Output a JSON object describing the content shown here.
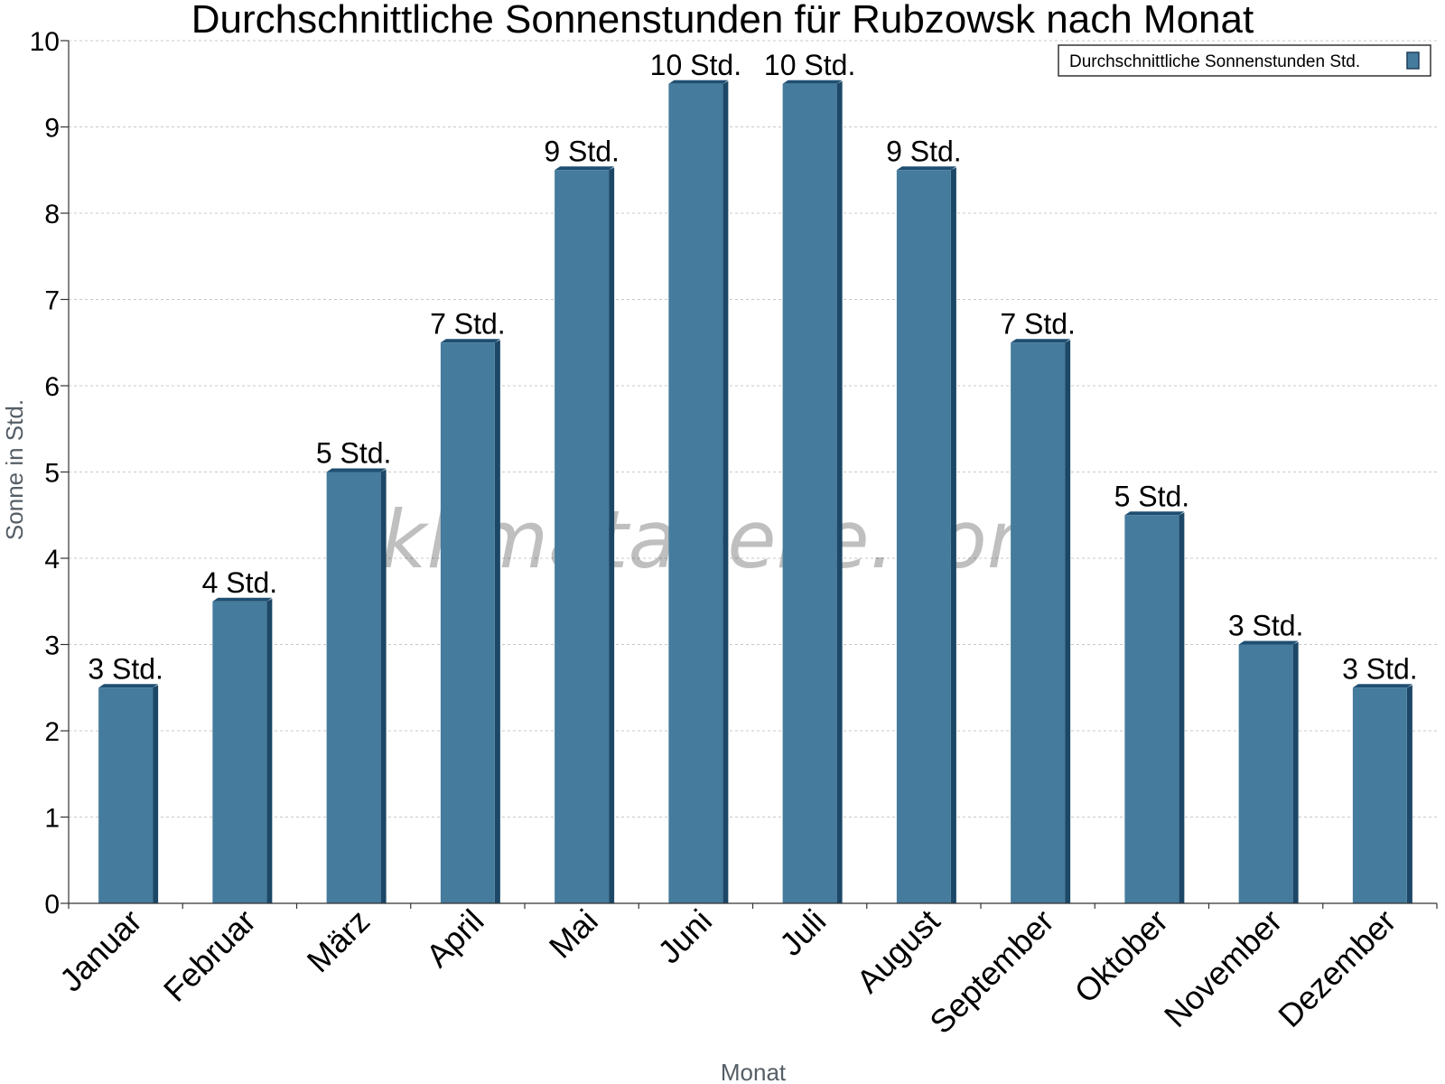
{
  "chart_data": {
    "type": "bar",
    "title": "Durchschnittliche Sonnenstunden für Rubzowsk nach Monat",
    "xlabel": "Monat",
    "ylabel": "Sonne in Std.",
    "ylim": [
      0,
      10
    ],
    "yticks": [
      "0",
      "1",
      "2",
      "3",
      "4",
      "5",
      "6",
      "7",
      "8",
      "9",
      "10"
    ],
    "grid": true,
    "legend_position": "top-right",
    "categories": [
      "Januar",
      "Februar",
      "März",
      "April",
      "Mai",
      "Juni",
      "Juli",
      "August",
      "September",
      "Oktober",
      "November",
      "Dezember"
    ],
    "series": [
      {
        "name": "Durchschnittliche Sonnenstunden Std.",
        "color": "#457b9d",
        "values": [
          2.5,
          3.5,
          5.0,
          6.5,
          8.5,
          9.5,
          9.5,
          8.5,
          6.5,
          4.5,
          3.0,
          2.5
        ],
        "labels": [
          "3 Std.",
          "4 Std.",
          "5 Std.",
          "7 Std.",
          "9 Std.",
          "10 Std.",
          "10 Std.",
          "9 Std.",
          "7 Std.",
          "5 Std.",
          "3 Std.",
          "3 Std."
        ]
      }
    ]
  },
  "watermark": "klimatabelle.com"
}
